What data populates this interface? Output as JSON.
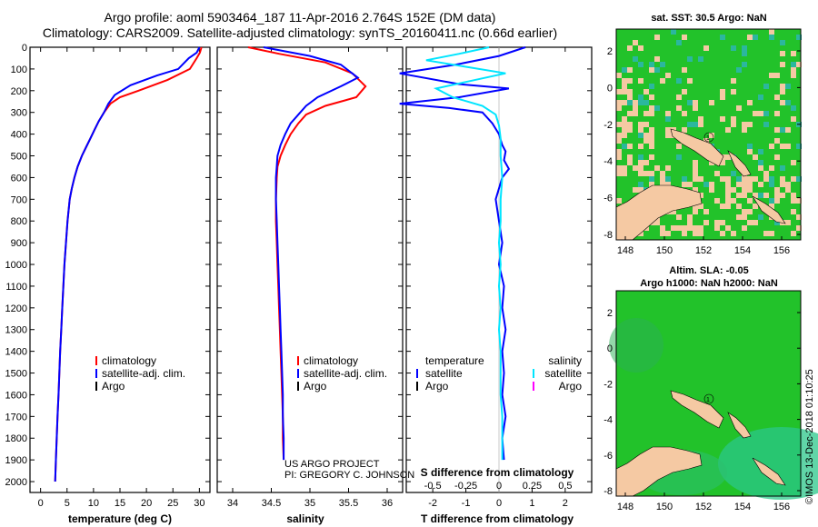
{
  "titles": {
    "line1": "Argo profile: aoml 5903464_187 11-Apr-2016 2.764S 152E (DM data)",
    "line2": "Climatology: CARS2009. Satellite-adjusted climatology: synTS_20160411.nc (0.66d earlier)"
  },
  "colors": {
    "climatology": "#ff0000",
    "satellite": "#0000ff",
    "argo": "#000000",
    "salinity_sat": "#00e5ff",
    "salinity_argo": "#ff00ff"
  },
  "depth_axis": {
    "ticks": [
      "0",
      "100",
      "200",
      "300",
      "400",
      "500",
      "600",
      "700",
      "800",
      "900",
      "1000",
      "1100",
      "1200",
      "1300",
      "1400",
      "1500",
      "1600",
      "1700",
      "1800",
      "1900",
      "2000"
    ]
  },
  "chart_data": [
    {
      "type": "line",
      "name": "temperature",
      "xlabel": "temperature (deg C)",
      "xlim": [
        -2,
        32
      ],
      "xticks": [
        "0",
        "5",
        "10",
        "15",
        "20",
        "25",
        "30"
      ],
      "ylim": [
        0,
        2050
      ],
      "legend": [
        "climatology",
        "satellite-adj. clim.",
        "Argo"
      ],
      "series": [
        {
          "name": "climatology",
          "color": "climatology",
          "x": [
            30.4,
            30.1,
            29.5,
            28.2,
            24,
            18.5,
            15,
            13.2,
            12,
            11,
            10.2,
            9.4,
            8.6,
            7.8,
            7,
            6.4,
            5.9,
            5.5,
            5.1,
            4.8,
            4.5,
            4.3,
            4.1,
            3.9,
            3.7,
            3.55,
            3.4,
            3.2,
            3.05,
            2.9,
            2.75
          ],
          "y": [
            0,
            25,
            50,
            100,
            150,
            200,
            230,
            260,
            300,
            340,
            380,
            420,
            460,
            500,
            550,
            600,
            650,
            700,
            800,
            900,
            1000,
            1100,
            1200,
            1300,
            1400,
            1500,
            1600,
            1700,
            1800,
            1900,
            2000
          ]
        },
        {
          "name": "satellite-adj. clim.",
          "color": "satellite",
          "x": [
            30,
            29.5,
            28,
            26,
            22,
            17,
            14,
            12.8,
            12,
            11,
            10.2,
            9.4,
            8.6,
            7.8,
            7,
            6.4,
            5.9,
            5.5,
            5.1,
            4.8,
            4.5,
            4.3,
            4.1,
            3.9,
            3.7,
            3.55,
            3.4,
            3.2,
            3.05,
            2.9,
            2.75
          ],
          "y": [
            0,
            25,
            50,
            100,
            130,
            175,
            220,
            260,
            300,
            340,
            380,
            420,
            460,
            500,
            550,
            600,
            650,
            700,
            800,
            900,
            1000,
            1100,
            1200,
            1300,
            1400,
            1500,
            1600,
            1700,
            1800,
            1900,
            2000
          ]
        }
      ]
    },
    {
      "type": "line",
      "name": "salinity",
      "xlabel": "salinity",
      "xlim": [
        33.8,
        36.2
      ],
      "xticks": [
        "34",
        "34.5",
        "35",
        "35.5",
        "36"
      ],
      "ylim": [
        0,
        2050
      ],
      "legend": [
        "climatology",
        "satellite-adj. clim.",
        "Argo"
      ],
      "annotation": [
        "US ARGO PROJECT",
        "PI: GREGORY C. JOHNSON"
      ],
      "series": [
        {
          "name": "climatology",
          "color": "climatology",
          "x": [
            34.2,
            34.6,
            35.2,
            35.55,
            35.72,
            35.6,
            35.2,
            34.95,
            34.85,
            34.75,
            34.68,
            34.62,
            34.58,
            34.57,
            34.56,
            34.56,
            34.57,
            34.58,
            34.59,
            34.6,
            34.61,
            34.62,
            34.63,
            34.64,
            34.65,
            34.65,
            34.66
          ],
          "y": [
            0,
            30,
            70,
            120,
            180,
            230,
            270,
            310,
            350,
            400,
            450,
            500,
            550,
            600,
            700,
            800,
            900,
            1000,
            1100,
            1200,
            1300,
            1400,
            1500,
            1600,
            1700,
            1800,
            1900
          ]
        },
        {
          "name": "satellite-adj. clim.",
          "color": "satellite",
          "x": [
            34.4,
            35.0,
            35.4,
            35.62,
            35.4,
            35.1,
            34.95,
            34.85,
            34.75,
            34.68,
            34.62,
            34.58,
            34.57,
            34.56,
            34.56,
            34.57,
            34.58,
            34.59,
            34.6,
            34.61,
            34.62,
            34.63,
            34.64,
            34.65,
            34.65,
            34.66,
            34.66
          ],
          "y": [
            0,
            40,
            80,
            140,
            180,
            230,
            270,
            310,
            350,
            400,
            450,
            500,
            550,
            600,
            700,
            800,
            900,
            1000,
            1100,
            1200,
            1300,
            1400,
            1500,
            1600,
            1700,
            1800,
            1900
          ]
        }
      ]
    },
    {
      "type": "line",
      "name": "difference",
      "xlabel": "T difference from climatology",
      "xlabel_top": "S difference from climatology",
      "xlim": [
        -2.8,
        2.8
      ],
      "xticks": [
        "-2",
        "-1",
        "0",
        "1",
        "2"
      ],
      "xticks_top": [
        "-0.5",
        "-0.25",
        "0",
        "0.25",
        "0.5"
      ],
      "ylim": [
        0,
        2050
      ],
      "legend_left": {
        "header": "temperature",
        "items": [
          "satellite",
          "Argo"
        ]
      },
      "legend_right": {
        "header": "salinity",
        "items": [
          "satellite",
          "Argo"
        ]
      },
      "series": [
        {
          "name": "temperature satellite",
          "color": "satellite",
          "x": [
            0.8,
            0,
            -1.3,
            -3,
            -1.2,
            0.3,
            -1.2,
            -3,
            -1.5,
            -0.5,
            -0.2,
            0,
            0.1,
            0.2,
            0.15,
            0.3,
            0.1,
            -0.1,
            0,
            0.1,
            0,
            0.15,
            0.1,
            0.2,
            0.1,
            0.15,
            0.1,
            0.2,
            0.1,
            0.15
          ],
          "y": [
            0,
            40,
            80,
            120,
            170,
            190,
            230,
            260,
            280,
            300,
            350,
            400,
            450,
            480,
            520,
            560,
            600,
            700,
            800,
            900,
            1000,
            1100,
            1200,
            1300,
            1400,
            1500,
            1600,
            1700,
            1800,
            1900
          ]
        },
        {
          "name": "salinity satellite",
          "color": "salinity_sat",
          "x": [
            -0.3,
            -1.2,
            -2.2,
            -1,
            0.2,
            -1,
            -1.9,
            -1.4,
            -0.5,
            -0.1,
            0,
            0.05,
            0.05,
            0.1,
            0.05,
            0.05,
            0,
            0.05,
            0,
            0.05,
            0,
            0.05,
            0.05,
            0.05,
            0.1,
            0.1,
            0.1
          ],
          "y": [
            0,
            30,
            60,
            90,
            120,
            160,
            190,
            230,
            270,
            310,
            360,
            420,
            500,
            600,
            700,
            800,
            900,
            1000,
            1100,
            1200,
            1300,
            1400,
            1500,
            1600,
            1700,
            1800,
            1900
          ]
        }
      ]
    }
  ],
  "maps": {
    "sst": {
      "title": "sat. SST: 30.5 Argo: NaN",
      "xticks": [
        "148",
        "150",
        "152",
        "154",
        "156"
      ],
      "yticks": [
        "2",
        "0",
        "-2",
        "-4",
        "-6",
        "-8"
      ]
    },
    "sla": {
      "title1": "Altim. SLA: -0.05",
      "title2": "Argo h1000: NaN h2000: NaN",
      "xticks": [
        "148",
        "150",
        "152",
        "154",
        "156"
      ],
      "yticks": [
        "2",
        "0",
        "-2",
        "-4",
        "-6",
        "-8"
      ]
    },
    "float_label": "1"
  },
  "credit": "©IMOS 13-Dec-2018 01:10:25"
}
